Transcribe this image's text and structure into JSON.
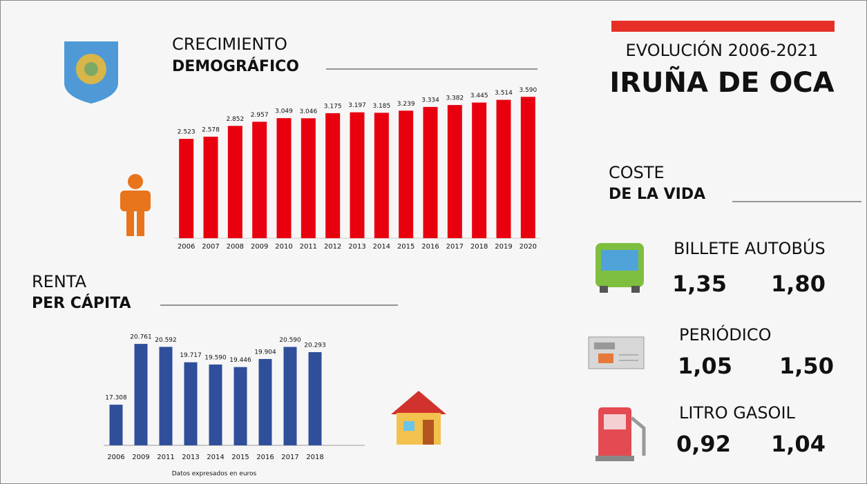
{
  "header": {
    "subtitle": "EVOLUCIÓN 2006-2021",
    "title": "IRUÑA DE OCA"
  },
  "chart_data": [
    {
      "type": "bar",
      "title": "CRECIMIENTO",
      "subtitle": "DEMOGRÁFICO",
      "color": "#e8000f",
      "categories": [
        "2006",
        "2007",
        "2008",
        "2009",
        "2010",
        "2011",
        "2012",
        "2013",
        "2014",
        "2015",
        "2016",
        "2017",
        "2018",
        "2019",
        "2020"
      ],
      "values": [
        2523,
        2578,
        2852,
        2957,
        3049,
        3046,
        3175,
        3197,
        3185,
        3239,
        3334,
        3382,
        3445,
        3514,
        3590
      ],
      "value_labels": [
        "2.523",
        "2.578",
        "2.852",
        "2.957",
        "3.049",
        "3.046",
        "3.175",
        "3.197",
        "3.185",
        "3.239",
        "3.334",
        "3.382",
        "3.445",
        "3.514",
        "3.590"
      ],
      "ylim": [
        0,
        3700
      ]
    },
    {
      "type": "bar",
      "title": "RENTA",
      "subtitle": "PER CÁPITA",
      "color": "#2f4f9a",
      "categories": [
        "2006",
        "2009",
        "2011",
        "2013",
        "2014",
        "2015",
        "2016",
        "2017",
        "2018"
      ],
      "values": [
        17308,
        20761,
        20592,
        19717,
        19590,
        19446,
        19904,
        20590,
        20293
      ],
      "value_labels": [
        "17.308",
        "20.761",
        "20.592",
        "19.717",
        "19.590",
        "19.446",
        "19.904",
        "20.590",
        "20.293"
      ],
      "ylim": [
        15000,
        21000
      ],
      "note": "Datos expresados en euros"
    }
  ],
  "cost_of_living": {
    "title": "COSTE",
    "subtitle": "DE LA VIDA",
    "items": [
      {
        "label": "BILLETE AUTOBÚS",
        "values": [
          "1,35",
          "1,80"
        ]
      },
      {
        "label": "PERIÓDICO",
        "values": [
          "1,05",
          "1,50"
        ]
      },
      {
        "label": "LITRO GASOIL",
        "values": [
          "0,92",
          "1,04"
        ]
      }
    ]
  }
}
